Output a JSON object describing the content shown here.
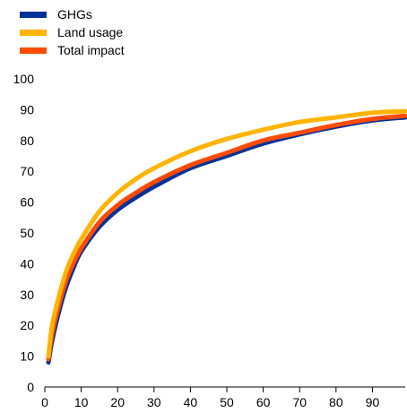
{
  "chart_data": {
    "type": "line",
    "title": "",
    "xlabel": "",
    "ylabel": "",
    "xlim": [
      0,
      99
    ],
    "ylim": [
      0,
      100
    ],
    "x_ticks": [
      0,
      10,
      20,
      30,
      40,
      50,
      60,
      70,
      80,
      90
    ],
    "y_ticks": [
      0,
      10,
      20,
      30,
      40,
      50,
      60,
      70,
      80,
      90,
      100
    ],
    "grid": false,
    "legend_position": "top-left",
    "x": [
      1,
      2,
      4,
      6,
      8,
      10,
      15,
      20,
      25,
      30,
      40,
      50,
      60,
      70,
      80,
      90,
      99
    ],
    "series": [
      {
        "name": "GHGs",
        "color": "#003299",
        "values": [
          8,
          15,
          25,
          33,
          39,
          44,
          52,
          57.5,
          61.5,
          65,
          71,
          75,
          79,
          82,
          84.5,
          86.5,
          87.5
        ]
      },
      {
        "name": "Land usage",
        "color": "#FFB400",
        "values": [
          10,
          20,
          30,
          38,
          43.5,
          48,
          57,
          63,
          67.5,
          71,
          76.5,
          80.5,
          83.5,
          86,
          87.5,
          89,
          89.5
        ]
      },
      {
        "name": "Total impact",
        "color": "#FF4B00",
        "values": [
          9,
          17,
          27,
          35,
          40.5,
          45,
          53.5,
          59,
          63,
          66.5,
          72,
          76,
          80,
          82.5,
          85,
          87,
          88
        ]
      }
    ]
  }
}
